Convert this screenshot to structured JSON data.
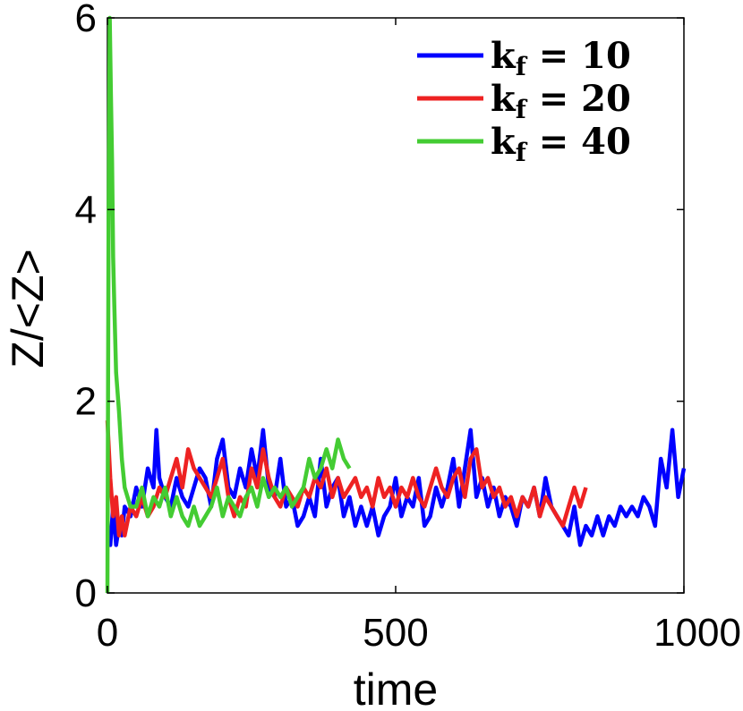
{
  "chart_data": {
    "type": "line",
    "title": "",
    "xlabel": "time",
    "ylabel": "Z/<Z>",
    "xlim": [
      0,
      1000
    ],
    "ylim": [
      0,
      6
    ],
    "x_ticks": [
      "0",
      "500",
      "1000"
    ],
    "y_ticks": [
      "0",
      "2",
      "4",
      "6"
    ],
    "grid": false,
    "legend": "top-right",
    "series": [
      {
        "name": "k_f = 10",
        "legend_main": "k",
        "legend_sub": "f",
        "legend_rest": " = 10",
        "color": "#0000ff",
        "x": [
          0,
          5,
          10,
          15,
          20,
          25,
          30,
          40,
          50,
          60,
          70,
          80,
          85,
          90,
          100,
          110,
          120,
          130,
          140,
          150,
          160,
          170,
          180,
          190,
          200,
          210,
          220,
          230,
          240,
          250,
          260,
          270,
          280,
          290,
          300,
          310,
          320,
          330,
          340,
          350,
          360,
          370,
          380,
          390,
          400,
          410,
          420,
          430,
          440,
          450,
          460,
          470,
          480,
          490,
          500,
          510,
          520,
          530,
          540,
          550,
          560,
          570,
          580,
          590,
          600,
          610,
          620,
          630,
          640,
          650,
          660,
          670,
          680,
          690,
          700,
          710,
          720,
          730,
          740,
          750,
          760,
          770,
          780,
          790,
          800,
          810,
          820,
          830,
          840,
          850,
          860,
          870,
          880,
          890,
          900,
          910,
          920,
          930,
          940,
          950,
          960,
          970,
          980,
          990,
          1000
        ],
        "y": [
          0.5,
          0.5,
          0.9,
          0.5,
          0.7,
          0.6,
          0.9,
          0.8,
          1.1,
          0.9,
          1.3,
          1.1,
          1.7,
          1.2,
          1.0,
          0.9,
          1.2,
          1.0,
          0.9,
          1.1,
          1.3,
          1.2,
          0.9,
          1.4,
          1.6,
          1.1,
          1.0,
          1.3,
          1.1,
          1.5,
          1.2,
          1.7,
          1.1,
          1.0,
          1.4,
          0.9,
          1.0,
          0.7,
          0.8,
          1.0,
          0.8,
          1.4,
          0.9,
          1.1,
          1.2,
          0.8,
          1.0,
          0.7,
          0.9,
          0.7,
          0.9,
          0.6,
          0.8,
          0.9,
          1.2,
          0.8,
          1.0,
          0.9,
          1.2,
          0.7,
          0.8,
          1.1,
          0.9,
          1.1,
          1.4,
          0.9,
          1.3,
          1.7,
          1.0,
          1.2,
          0.9,
          1.1,
          0.8,
          1.0,
          0.9,
          0.7,
          1.0,
          0.9,
          1.1,
          0.8,
          1.2,
          0.9,
          0.8,
          0.7,
          0.6,
          0.9,
          0.5,
          0.7,
          0.6,
          0.8,
          0.6,
          0.8,
          0.7,
          0.9,
          0.8,
          0.9,
          0.8,
          1.0,
          0.9,
          0.7,
          1.4,
          1.1,
          1.7,
          1.0,
          1.3
        ]
      },
      {
        "name": "k_f = 20",
        "legend_main": "k",
        "legend_sub": "f",
        "legend_rest": " = 20",
        "color": "#ee2222",
        "x": [
          0,
          5,
          10,
          15,
          20,
          25,
          30,
          40,
          50,
          60,
          70,
          80,
          90,
          100,
          110,
          120,
          130,
          140,
          150,
          160,
          170,
          180,
          190,
          200,
          210,
          220,
          230,
          240,
          250,
          260,
          270,
          280,
          290,
          300,
          310,
          320,
          330,
          340,
          350,
          360,
          370,
          380,
          390,
          400,
          410,
          420,
          430,
          440,
          450,
          460,
          470,
          480,
          490,
          500,
          510,
          520,
          530,
          540,
          550,
          560,
          570,
          580,
          590,
          600,
          610,
          620,
          630,
          640,
          650,
          660,
          670,
          680,
          690,
          700,
          710,
          720,
          730,
          740,
          750,
          760,
          770,
          780,
          790,
          800,
          810,
          820,
          830
        ],
        "y": [
          1.8,
          1.2,
          0.8,
          1.0,
          0.6,
          0.8,
          0.6,
          0.9,
          0.8,
          1.0,
          0.8,
          0.9,
          1.1,
          1.0,
          1.2,
          1.4,
          1.1,
          1.5,
          1.3,
          1.2,
          1.1,
          1.0,
          1.2,
          1.4,
          1.0,
          0.8,
          1.0,
          0.9,
          1.3,
          1.1,
          1.5,
          1.2,
          1.0,
          0.9,
          1.1,
          1.0,
          0.9,
          1.1,
          1.0,
          1.2,
          1.1,
          1.3,
          1.0,
          1.2,
          1.0,
          1.1,
          1.2,
          1.0,
          1.1,
          0.9,
          1.2,
          1.0,
          1.1,
          0.9,
          1.1,
          1.0,
          1.2,
          1.0,
          0.9,
          1.1,
          1.3,
          1.1,
          1.0,
          1.2,
          1.3,
          1.0,
          1.4,
          1.5,
          1.1,
          1.2,
          1.0,
          1.1,
          0.9,
          1.0,
          0.8,
          1.0,
          0.9,
          1.1,
          0.8,
          1.0,
          0.9,
          0.8,
          0.7,
          0.9,
          1.1,
          0.9,
          1.1
        ]
      },
      {
        "name": "k_f = 40",
        "legend_main": "k",
        "legend_sub": "f",
        "legend_rest": " = 40",
        "color": "#44cc33",
        "x": [
          0,
          2,
          4,
          6,
          8,
          10,
          12,
          15,
          20,
          25,
          30,
          35,
          40,
          50,
          60,
          70,
          80,
          90,
          100,
          110,
          120,
          130,
          140,
          150,
          160,
          170,
          180,
          190,
          200,
          210,
          220,
          230,
          240,
          250,
          260,
          270,
          280,
          290,
          300,
          310,
          320,
          330,
          340,
          350,
          360,
          370,
          380,
          390,
          400,
          410,
          420
        ],
        "y": [
          0.0,
          3.9,
          6.0,
          5.2,
          4.5,
          3.5,
          3.0,
          2.3,
          1.9,
          1.4,
          1.1,
          1.0,
          0.9,
          0.9,
          1.1,
          0.8,
          1.0,
          0.9,
          1.1,
          0.8,
          1.0,
          0.8,
          0.7,
          0.9,
          0.7,
          0.8,
          0.9,
          1.1,
          0.8,
          1.0,
          0.9,
          0.8,
          1.0,
          1.1,
          0.9,
          1.2,
          1.0,
          1.1,
          1.0,
          1.1,
          0.9,
          1.0,
          1.1,
          1.4,
          1.2,
          1.3,
          1.5,
          1.3,
          1.6,
          1.4,
          1.3
        ]
      }
    ]
  }
}
